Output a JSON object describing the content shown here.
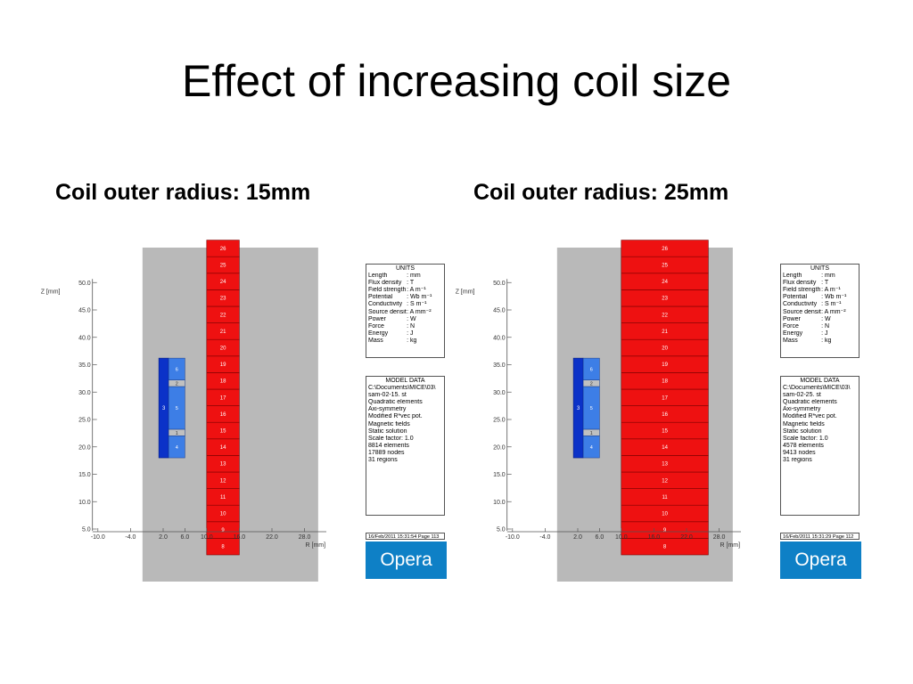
{
  "slide": {
    "title": "Effect of increasing coil size"
  },
  "panels": [
    {
      "caption": "Coil outer radius: 15mm",
      "conductor_x": [
        10,
        16
      ],
      "axis": {
        "z_label": "Z [mm]",
        "r_label": "R [mm]",
        "z_ticks": [
          "5.0",
          "10.0",
          "15.0",
          "20.0",
          "25.0",
          "30.0",
          "35.0",
          "40.0",
          "45.0",
          "50.0"
        ],
        "r_ticks": [
          "-10.0",
          "-4.0",
          "2.0",
          "6.0",
          "10.0",
          "16.0",
          "22.0",
          "28.0"
        ]
      },
      "segments": [
        "8",
        "9",
        "10",
        "11",
        "12",
        "13",
        "14",
        "15",
        "16",
        "17",
        "18",
        "19",
        "20",
        "21",
        "22",
        "23",
        "24",
        "25",
        "26"
      ],
      "coil_regions": {
        "outer": "3",
        "top": "6",
        "band_top": "2",
        "middle": "5",
        "band_bottom": "1",
        "bottom": "4"
      },
      "units": {
        "title": "UNITS",
        "rows": [
          {
            "name": "Length",
            "unit": ": mm"
          },
          {
            "name": "Flux density",
            "unit": ": T"
          },
          {
            "name": "Field strength",
            "unit": ": A m⁻¹"
          },
          {
            "name": "Potential",
            "unit": ": Wb m⁻¹"
          },
          {
            "name": "Conductivity",
            "unit": ": S m⁻¹"
          },
          {
            "name": "Source density",
            "unit": ": A mm⁻²"
          },
          {
            "name": "Power",
            "unit": ": W"
          },
          {
            "name": "Force",
            "unit": ": N"
          },
          {
            "name": "Energy",
            "unit": ": J"
          },
          {
            "name": "Mass",
            "unit": ": kg"
          }
        ]
      },
      "model": {
        "title": "MODEL DATA",
        "lines": [
          "C:\\Documents\\MICE\\03\\",
          "sam-02-15. st",
          "Quadratic elements",
          "Axi-symmetry",
          "Modified R*vec pot.",
          "Magnetic fields",
          "Static solution",
          "Scale factor: 1.0",
          "8814 elements",
          "17889 nodes",
          "31 regions"
        ]
      },
      "timestamp": "16/Feb/2011 15:31:54 Page 113",
      "logo": "Opera"
    },
    {
      "caption": "Coil outer radius: 25mm",
      "conductor_x": [
        10,
        26
      ],
      "axis": {
        "z_label": "Z [mm]",
        "r_label": "R [mm]",
        "z_ticks": [
          "5.0",
          "10.0",
          "15.0",
          "20.0",
          "25.0",
          "30.0",
          "35.0",
          "40.0",
          "45.0",
          "50.0"
        ],
        "r_ticks": [
          "-10.0",
          "-4.0",
          "2.0",
          "6.0",
          "10.0",
          "16.0",
          "22.0",
          "28.0"
        ]
      },
      "segments": [
        "8",
        "9",
        "10",
        "11",
        "12",
        "13",
        "14",
        "15",
        "16",
        "17",
        "18",
        "19",
        "20",
        "21",
        "22",
        "23",
        "24",
        "25",
        "26"
      ],
      "coil_regions": {
        "outer": "3",
        "top": "6",
        "band_top": "2",
        "middle": "5",
        "band_bottom": "1",
        "bottom": "4"
      },
      "units": {
        "title": "UNITS",
        "rows": [
          {
            "name": "Length",
            "unit": ": mm"
          },
          {
            "name": "Flux density",
            "unit": ": T"
          },
          {
            "name": "Field strength",
            "unit": ": A m⁻¹"
          },
          {
            "name": "Potential",
            "unit": ": Wb m⁻¹"
          },
          {
            "name": "Conductivity",
            "unit": ": S m⁻¹"
          },
          {
            "name": "Source density",
            "unit": ": A mm⁻²"
          },
          {
            "name": "Power",
            "unit": ": W"
          },
          {
            "name": "Force",
            "unit": ": N"
          },
          {
            "name": "Energy",
            "unit": ": J"
          },
          {
            "name": "Mass",
            "unit": ": kg"
          }
        ]
      },
      "model": {
        "title": "MODEL DATA",
        "lines": [
          "C:\\Documents\\MICE\\03\\",
          "sam-02-25. st",
          "Quadratic elements",
          "Axi-symmetry",
          "Modified R*vec pot.",
          "Magnetic fields",
          "Static solution",
          "Scale factor: 1.0",
          "4578 elements",
          "9413 nodes",
          "31 regions"
        ]
      },
      "timestamp": "16/Feb/2011 15:31:29 Page 112",
      "logo": "Opera"
    }
  ],
  "colors": {
    "conductor": "#ee1111",
    "coil_light": "#3d7ee6",
    "coil_dark": "#0b32c8",
    "band": "#c0c0c0",
    "background_region": "#b9b9b9",
    "logo_bg": "#0e80c6"
  }
}
